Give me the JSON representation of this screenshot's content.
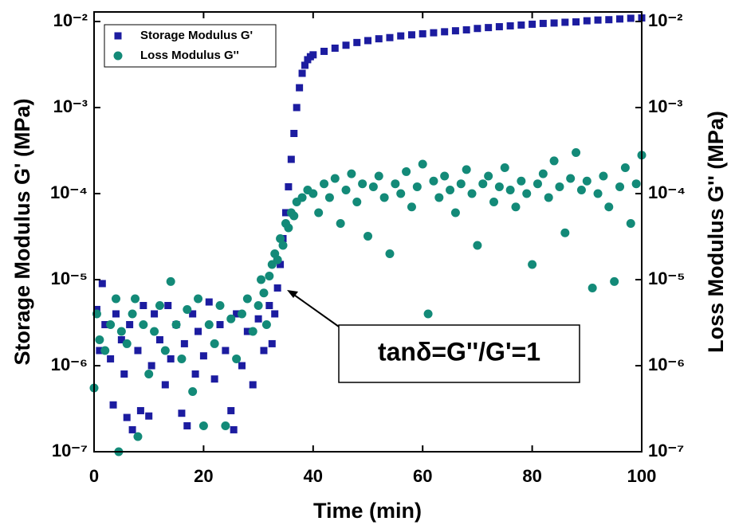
{
  "chart_data": {
    "type": "scatter",
    "xlabel": "Time (min)",
    "ylabel": "Storage Modulus G' (MPa)",
    "y2label": "Loss Modulus G'' (MPa)",
    "annotation": "tanδ=G''/G'=1",
    "log_y": true,
    "xlim": [
      0,
      100
    ],
    "xticks": [
      0,
      20,
      40,
      60,
      80,
      100
    ],
    "ylim": [
      1e-07,
      0.01
    ],
    "yticks": [
      {
        "value": 1e-07,
        "label": "10⁻⁷"
      },
      {
        "value": 1e-06,
        "label": "10⁻⁶"
      },
      {
        "value": 1e-05,
        "label": "10⁻⁵"
      },
      {
        "value": 0.0001,
        "label": "10⁻⁴"
      },
      {
        "value": 0.001,
        "label": "10⁻³"
      },
      {
        "value": 0.01,
        "label": "10⁻²"
      }
    ],
    "y2lim": [
      1e-07,
      0.01
    ],
    "y2ticks": [
      {
        "value": 1e-07,
        "label": "10⁻⁷"
      },
      {
        "value": 1e-06,
        "label": "10⁻⁶"
      },
      {
        "value": 1e-05,
        "label": "10⁻⁵"
      },
      {
        "value": 0.0001,
        "label": "10⁻⁴"
      },
      {
        "value": 0.001,
        "label": "10⁻³"
      },
      {
        "value": 0.01,
        "label": "10⁻²"
      }
    ],
    "legend": "upper left",
    "series": [
      {
        "name": "Storage Modulus G'",
        "color": "#1c1ca0",
        "marker": "square",
        "x": [
          0.5,
          1,
          1.5,
          2,
          3,
          3.5,
          4,
          5,
          5.5,
          6,
          6.5,
          7,
          8,
          8.5,
          9,
          10,
          10.5,
          11,
          12,
          13,
          13.5,
          14,
          15,
          16,
          16.5,
          17,
          18,
          18.5,
          19,
          20,
          21,
          22,
          23,
          24,
          25,
          25.5,
          26,
          27,
          28,
          29,
          30,
          31,
          32,
          32.5,
          33,
          33.5,
          34,
          34.5,
          35,
          35.5,
          36,
          36.5,
          37,
          37.5,
          38,
          38.5,
          39,
          39.5,
          40,
          42,
          44,
          46,
          48,
          50,
          52,
          54,
          56,
          58,
          60,
          62,
          64,
          66,
          68,
          70,
          72,
          74,
          76,
          78,
          80,
          82,
          84,
          86,
          88,
          90,
          92,
          94,
          96,
          98,
          100
        ],
        "values": [
          4.5e-06,
          1.5e-06,
          9e-06,
          3e-06,
          1.2e-06,
          3.5e-07,
          4e-06,
          2e-06,
          8e-07,
          2.5e-07,
          3e-06,
          1.8e-07,
          1.5e-06,
          3e-07,
          5e-06,
          2.6e-07,
          1e-06,
          4e-06,
          2e-06,
          6e-07,
          5e-06,
          1.2e-06,
          3e-06,
          2.8e-07,
          1.8e-06,
          2e-07,
          4e-06,
          8e-07,
          2.5e-06,
          1.3e-06,
          5.5e-06,
          7e-07,
          3e-06,
          1.5e-06,
          3e-07,
          1.8e-07,
          4e-06,
          1e-06,
          2.5e-06,
          6e-07,
          3.5e-06,
          1.5e-06,
          5e-06,
          1.8e-06,
          4e-06,
          8e-06,
          1.5e-05,
          3e-05,
          6e-05,
          0.00012,
          0.00025,
          0.0005,
          0.001,
          0.0017,
          0.0025,
          0.0031,
          0.0036,
          0.0039,
          0.0041,
          0.0045,
          0.0049,
          0.0053,
          0.0057,
          0.006,
          0.0063,
          0.0065,
          0.0068,
          0.007,
          0.0072,
          0.0074,
          0.0076,
          0.0078,
          0.008,
          0.0083,
          0.0085,
          0.0087,
          0.0089,
          0.0091,
          0.0093,
          0.0095,
          0.0096,
          0.0098,
          0.0099,
          0.0102,
          0.0104,
          0.0105,
          0.0107,
          0.0109,
          0.011
        ]
      },
      {
        "name": "Loss Modulus G''",
        "color": "#138a78",
        "marker": "circle",
        "axis": "y2",
        "x": [
          0,
          0.5,
          1,
          2,
          3,
          4,
          4.5,
          5,
          6,
          7,
          7.5,
          8,
          9,
          10,
          11,
          12,
          13,
          14,
          15,
          16,
          17,
          18,
          19,
          20,
          21,
          22,
          23,
          24,
          25,
          26,
          27,
          28,
          29,
          30,
          30.5,
          31,
          31.5,
          32,
          32.5,
          33,
          33.5,
          34,
          34.5,
          35,
          35.5,
          36,
          36.5,
          37,
          38,
          39,
          40,
          41,
          42,
          43,
          44,
          45,
          46,
          47,
          48,
          49,
          50,
          51,
          52,
          53,
          54,
          55,
          56,
          57,
          58,
          59,
          60,
          61,
          62,
          63,
          64,
          65,
          66,
          67,
          68,
          69,
          70,
          71,
          72,
          73,
          74,
          75,
          76,
          77,
          78,
          79,
          80,
          81,
          82,
          83,
          84,
          85,
          86,
          87,
          88,
          89,
          90,
          91,
          92,
          93,
          94,
          95,
          96,
          97,
          98,
          99,
          100
        ],
        "values": [
          5.5e-07,
          4e-06,
          2e-06,
          1.5e-06,
          3e-06,
          6e-06,
          1e-07,
          2.5e-06,
          1.8e-06,
          4e-06,
          6e-06,
          1.5e-07,
          3e-06,
          8e-07,
          2.5e-06,
          5e-06,
          1.5e-06,
          9.5e-06,
          3e-06,
          1.2e-06,
          4.5e-06,
          5e-07,
          6e-06,
          2e-07,
          3e-06,
          1.8e-06,
          5e-06,
          2e-07,
          3.5e-06,
          1.2e-06,
          4e-06,
          6e-06,
          2.5e-06,
          5e-06,
          1e-05,
          7e-06,
          3e-06,
          1.1e-05,
          1.5e-05,
          2e-05,
          1.7e-05,
          3e-05,
          2.5e-05,
          4.5e-05,
          4e-05,
          6e-05,
          5.5e-05,
          8e-05,
          9e-05,
          0.00011,
          0.0001,
          6e-05,
          0.00013,
          9e-05,
          0.00015,
          4.5e-05,
          0.00011,
          0.00017,
          8e-05,
          0.00013,
          3.2e-05,
          0.00012,
          0.00016,
          9e-05,
          2e-05,
          0.00013,
          0.0001,
          0.00018,
          7e-05,
          0.00012,
          0.00022,
          4e-06,
          0.00014,
          9e-05,
          0.00016,
          0.00011,
          6e-05,
          0.00013,
          0.00019,
          0.0001,
          2.5e-05,
          0.00013,
          0.00016,
          8e-05,
          0.00012,
          0.0002,
          0.00011,
          7e-05,
          0.00014,
          0.0001,
          1.5e-05,
          0.00013,
          0.00017,
          9e-05,
          0.00024,
          0.00012,
          3.5e-05,
          0.00015,
          0.0003,
          0.00011,
          0.00014,
          8e-06,
          0.0001,
          0.00016,
          7e-05,
          9.5e-06,
          0.00012,
          0.0002,
          4.5e-05,
          0.00013,
          0.00028
        ]
      }
    ]
  }
}
